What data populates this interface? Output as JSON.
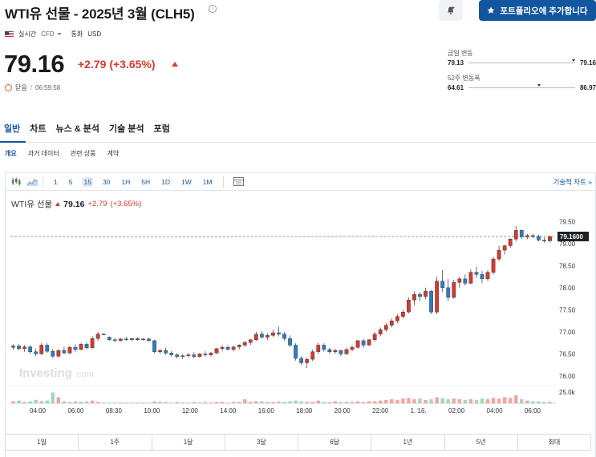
{
  "header": {
    "title": "WTI유 선물 - 2025년 3월 (CLH5)",
    "alert_icon": "bell-plus-icon",
    "portfolio_button": "포트폴리오에 추가합니다"
  },
  "meta": {
    "realtime": "실시간",
    "cfd": "CFD",
    "currency_label": "통화",
    "currency": "USD"
  },
  "quote": {
    "price": "79.16",
    "change": "+2.79 (+3.65%)",
    "status": "닫음",
    "time": "06:59:58",
    "up_color": "#d33a2e"
  },
  "ranges": {
    "day_label": "금일 변동",
    "day_low": "79.13",
    "day_high": "79.16",
    "week_label": "52주 변동폭",
    "week_low": "64.61",
    "week_high": "86.97"
  },
  "tabs": [
    "일반",
    "차트",
    "뉴스 & 분석",
    "기술 분석",
    "포럼"
  ],
  "subtabs": [
    "개요",
    "과거 데이터",
    "관련 상품",
    "계약"
  ],
  "toolbar": {
    "intervals": [
      "1",
      "5",
      "15",
      "30",
      "1H",
      "5H",
      "1D",
      "1W",
      "1M"
    ],
    "active_interval": "15",
    "tech_chart": "기술적 차트 »"
  },
  "chart_head": {
    "name": "WTI유 선물",
    "price": "79.16",
    "change": "+2.79",
    "pct": "(+3.65%)"
  },
  "periods": [
    "1일",
    "1주",
    "1달",
    "3달",
    "6달",
    "1년",
    "5년",
    "최대"
  ],
  "chart_data": {
    "type": "candlestick",
    "ylim": [
      75.8,
      79.65
    ],
    "yticks": [
      "79.50",
      "79.00",
      "78.50",
      "78.00",
      "77.50",
      "77.00",
      "76.50",
      "76.00"
    ],
    "ytick_values": [
      79.5,
      79.0,
      78.5,
      78.0,
      77.5,
      77.0,
      76.5,
      76.0
    ],
    "current_price_label": "79.1600",
    "current_price": 79.16,
    "volume_tick": "25.0k",
    "xticks": [
      "04:00",
      "06:00",
      "08:30",
      "10:00",
      "12:00",
      "14:00",
      "16:00",
      "18:00",
      "20:00",
      "22:00",
      "1. 16.",
      "02:00",
      "04:00",
      "06:00"
    ],
    "watermark": "Investing",
    "watermark_suffix": ".com",
    "up_color": "#d33a2e",
    "down_color": "#2f7dbf",
    "vol_up_color": "#f2a3a3",
    "vol_down_color": "#9fd9b5",
    "candles": [
      [
        76.65,
        76.72,
        76.6,
        76.68
      ],
      [
        76.68,
        76.72,
        76.58,
        76.62
      ],
      [
        76.62,
        76.7,
        76.55,
        76.66
      ],
      [
        76.66,
        76.7,
        76.5,
        76.55
      ],
      [
        76.55,
        76.62,
        76.45,
        76.5
      ],
      [
        76.5,
        76.75,
        76.48,
        76.7
      ],
      [
        76.7,
        76.74,
        76.52,
        76.56
      ],
      [
        76.56,
        76.62,
        76.4,
        76.45
      ],
      [
        76.45,
        76.6,
        76.42,
        76.58
      ],
      [
        76.58,
        76.66,
        76.5,
        76.52
      ],
      [
        76.52,
        76.68,
        76.5,
        76.65
      ],
      [
        76.65,
        76.72,
        76.55,
        76.6
      ],
      [
        76.6,
        76.75,
        76.58,
        76.72
      ],
      [
        76.72,
        76.76,
        76.6,
        76.64
      ],
      [
        76.64,
        76.9,
        76.62,
        76.85
      ],
      [
        76.85,
        77.0,
        76.8,
        76.95
      ],
      [
        76.95,
        76.97,
        76.93,
        76.94
      ],
      [
        76.88,
        76.9,
        76.8,
        76.82
      ],
      [
        76.82,
        76.86,
        76.78,
        76.8
      ],
      [
        76.8,
        76.86,
        76.78,
        76.84
      ],
      [
        76.84,
        76.88,
        76.8,
        76.82
      ],
      [
        76.82,
        76.86,
        76.8,
        76.85
      ],
      [
        76.85,
        76.88,
        76.8,
        76.82
      ],
      [
        76.82,
        76.86,
        76.8,
        76.84
      ],
      [
        76.84,
        76.86,
        76.78,
        76.8
      ],
      [
        76.8,
        76.82,
        76.52,
        76.55
      ],
      [
        76.55,
        76.62,
        76.5,
        76.58
      ],
      [
        76.58,
        76.64,
        76.48,
        76.52
      ],
      [
        76.52,
        76.56,
        76.44,
        76.48
      ],
      [
        76.48,
        76.52,
        76.4,
        76.44
      ],
      [
        76.44,
        76.5,
        76.38,
        76.46
      ],
      [
        76.46,
        76.52,
        76.42,
        76.48
      ],
      [
        76.48,
        76.54,
        76.4,
        76.44
      ],
      [
        76.44,
        76.52,
        76.42,
        76.5
      ],
      [
        76.5,
        76.56,
        76.44,
        76.48
      ],
      [
        76.48,
        76.55,
        76.44,
        76.52
      ],
      [
        76.52,
        76.64,
        76.5,
        76.62
      ],
      [
        76.62,
        76.7,
        76.56,
        76.65
      ],
      [
        76.65,
        76.7,
        76.58,
        76.6
      ],
      [
        76.6,
        76.68,
        76.56,
        76.66
      ],
      [
        76.66,
        76.72,
        76.6,
        76.7
      ],
      [
        76.7,
        76.8,
        76.66,
        76.76
      ],
      [
        76.76,
        76.84,
        76.7,
        76.82
      ],
      [
        76.82,
        77.0,
        76.8,
        76.95
      ],
      [
        76.95,
        77.02,
        76.85,
        76.88
      ],
      [
        76.88,
        76.96,
        76.82,
        76.92
      ],
      [
        76.92,
        77.05,
        76.88,
        76.98
      ],
      [
        76.98,
        77.12,
        76.9,
        76.95
      ],
      [
        76.95,
        77.0,
        76.8,
        76.85
      ],
      [
        76.85,
        76.92,
        76.65,
        76.7
      ],
      [
        76.7,
        76.74,
        76.35,
        76.4
      ],
      [
        76.4,
        76.45,
        76.25,
        76.3
      ],
      [
        76.3,
        76.42,
        76.18,
        76.38
      ],
      [
        76.38,
        76.6,
        76.34,
        76.55
      ],
      [
        76.55,
        76.75,
        76.5,
        76.7
      ],
      [
        76.7,
        76.74,
        76.55,
        76.6
      ],
      [
        76.6,
        76.64,
        76.5,
        76.55
      ],
      [
        76.55,
        76.62,
        76.5,
        76.58
      ],
      [
        76.58,
        76.6,
        76.45,
        76.5
      ],
      [
        76.5,
        76.64,
        76.48,
        76.6
      ],
      [
        76.6,
        76.7,
        76.56,
        76.65
      ],
      [
        76.65,
        76.82,
        76.62,
        76.8
      ],
      [
        76.8,
        76.84,
        76.64,
        76.7
      ],
      [
        76.7,
        76.84,
        76.68,
        76.82
      ],
      [
        76.82,
        77.0,
        76.78,
        76.95
      ],
      [
        76.95,
        77.1,
        76.9,
        77.05
      ],
      [
        77.05,
        77.2,
        77.0,
        77.15
      ],
      [
        77.15,
        77.3,
        77.1,
        77.25
      ],
      [
        77.25,
        77.4,
        77.2,
        77.35
      ],
      [
        77.35,
        77.5,
        77.3,
        77.45
      ],
      [
        77.45,
        77.78,
        77.42,
        77.72
      ],
      [
        77.72,
        77.92,
        77.6,
        77.85
      ],
      [
        77.85,
        77.9,
        77.7,
        77.8
      ],
      [
        77.8,
        78.0,
        77.74,
        77.92
      ],
      [
        77.92,
        77.95,
        77.4,
        77.45
      ],
      [
        77.45,
        78.25,
        77.4,
        78.15
      ],
      [
        78.15,
        78.4,
        77.9,
        78.0
      ],
      [
        78.0,
        78.2,
        77.7,
        77.78
      ],
      [
        77.78,
        78.18,
        77.75,
        78.12
      ],
      [
        78.12,
        78.25,
        78.0,
        78.2
      ],
      [
        78.2,
        78.3,
        78.05,
        78.1
      ],
      [
        78.1,
        78.42,
        78.08,
        78.35
      ],
      [
        78.35,
        78.48,
        78.22,
        78.3
      ],
      [
        78.3,
        78.38,
        78.1,
        78.2
      ],
      [
        78.2,
        78.4,
        78.15,
        78.35
      ],
      [
        78.35,
        78.7,
        78.3,
        78.65
      ],
      [
        78.65,
        78.95,
        78.6,
        78.85
      ],
      [
        78.85,
        78.98,
        78.75,
        78.95
      ],
      [
        78.95,
        79.12,
        78.9,
        79.1
      ],
      [
        79.1,
        79.4,
        79.05,
        79.3
      ],
      [
        79.3,
        79.32,
        79.1,
        79.15
      ],
      [
        79.15,
        79.22,
        79.1,
        79.18
      ],
      [
        79.18,
        79.22,
        79.12,
        79.16
      ],
      [
        79.16,
        79.2,
        79.05,
        79.08
      ],
      [
        79.08,
        79.14,
        79.02,
        79.06
      ],
      [
        79.06,
        79.18,
        79.04,
        79.16
      ]
    ],
    "volumes": [
      3,
      4,
      2,
      3,
      5,
      3,
      4,
      16,
      9,
      3,
      2,
      3,
      2,
      3,
      4,
      2,
      1,
      1,
      1,
      1,
      1,
      1,
      1,
      1,
      1,
      3,
      2,
      2,
      1,
      2,
      1,
      1,
      2,
      1,
      2,
      1,
      2,
      2,
      1,
      2,
      2,
      6,
      2,
      3,
      3,
      2,
      2,
      3,
      2,
      3,
      4,
      3,
      2,
      2,
      4,
      2,
      2,
      3,
      2,
      2,
      2,
      3,
      2,
      3,
      3,
      4,
      5,
      6,
      5,
      7,
      8,
      6,
      7,
      5,
      6,
      9,
      8,
      6,
      7,
      6,
      5,
      6,
      5,
      7,
      6,
      8,
      7,
      9,
      8,
      12,
      6,
      4,
      3,
      3,
      2,
      2
    ],
    "vmax": 25
  }
}
